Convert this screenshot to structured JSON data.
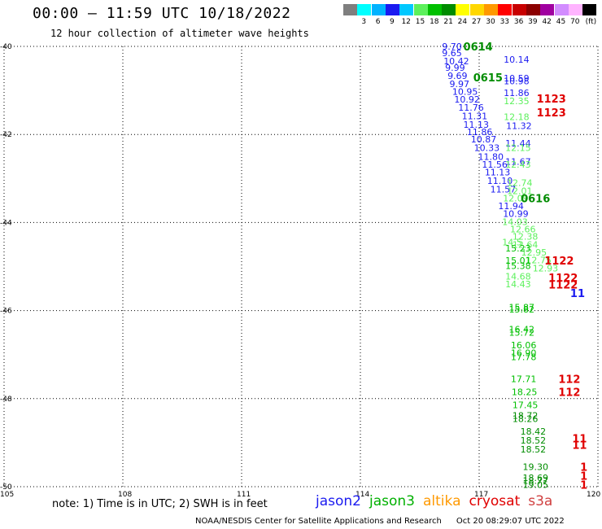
{
  "header": {
    "title": "00:00 – 11:59 UTC 10/18/2022",
    "subtitle": "12 hour collection of altimeter wave heights"
  },
  "legend": {
    "unit": "(ft)",
    "items": [
      {
        "label": "",
        "color": "#7f7f7f"
      },
      {
        "label": "3",
        "color": "#00ffff"
      },
      {
        "label": "6",
        "color": "#00b3ff"
      },
      {
        "label": "9",
        "color": "#1b1bf0"
      },
      {
        "label": "12",
        "color": "#00c8ff"
      },
      {
        "label": "15",
        "color": "#5cf05c"
      },
      {
        "label": "18",
        "color": "#00c000"
      },
      {
        "label": "21",
        "color": "#008c00"
      },
      {
        "label": "24",
        "color": "#ffff00"
      },
      {
        "label": "27",
        "color": "#ffd700"
      },
      {
        "label": "30",
        "color": "#ff9900"
      },
      {
        "label": "33",
        "color": "#ff0000"
      },
      {
        "label": "36",
        "color": "#c80000"
      },
      {
        "label": "39",
        "color": "#8b0000"
      },
      {
        "label": "42",
        "color": "#a000a0"
      },
      {
        "label": "45",
        "color": "#d28cff"
      },
      {
        "label": "70",
        "color": "#ffb4ff"
      },
      {
        "label": "",
        "color": "#000000"
      }
    ]
  },
  "map": {
    "lon_ticks": [
      "105",
      "108",
      "111",
      "114",
      "117",
      "120"
    ],
    "lat_ticks": [
      "-40",
      "-42",
      "-44",
      "-46",
      "-48",
      "-50"
    ]
  },
  "observations": [
    {
      "t": "9.70",
      "c": "#1b1bf0",
      "lon": 116.06,
      "lat": -40.0
    },
    {
      "t": "9.65",
      "c": "#1b1bf0",
      "lon": 116.06,
      "lat": -40.15
    },
    {
      "t": "10.42",
      "c": "#1b1bf0",
      "lon": 116.1,
      "lat": -40.33
    },
    {
      "t": "9.99",
      "c": "#1b1bf0",
      "lon": 116.14,
      "lat": -40.48
    },
    {
      "t": "9.69",
      "c": "#1b1bf0",
      "lon": 116.2,
      "lat": -40.67
    },
    {
      "t": "9.97",
      "c": "#1b1bf0",
      "lon": 116.25,
      "lat": -40.85
    },
    {
      "t": "10.95",
      "c": "#1b1bf0",
      "lon": 116.32,
      "lat": -41.03
    },
    {
      "t": "10.92",
      "c": "#1b1bf0",
      "lon": 116.37,
      "lat": -41.2
    },
    {
      "t": "11.76",
      "c": "#1b1bf0",
      "lon": 116.47,
      "lat": -41.39
    },
    {
      "t": "11.31",
      "c": "#1b1bf0",
      "lon": 116.56,
      "lat": -41.58
    },
    {
      "t": "11.13",
      "c": "#1b1bf0",
      "lon": 116.6,
      "lat": -41.77
    },
    {
      "t": "11.86",
      "c": "#1b1bf0",
      "lon": 116.69,
      "lat": -41.94
    },
    {
      "t": "10.87",
      "c": "#1b1bf0",
      "lon": 116.79,
      "lat": -42.11
    },
    {
      "t": "10.33",
      "c": "#1b1bf0",
      "lon": 116.87,
      "lat": -42.3
    },
    {
      "t": "11.80",
      "c": "#1b1bf0",
      "lon": 116.97,
      "lat": -42.5
    },
    {
      "t": "11.56",
      "c": "#1b1bf0",
      "lon": 117.07,
      "lat": -42.68
    },
    {
      "t": "11.13",
      "c": "#1b1bf0",
      "lon": 117.14,
      "lat": -42.86
    },
    {
      "t": "11.10",
      "c": "#1b1bf0",
      "lon": 117.2,
      "lat": -43.05
    },
    {
      "t": "11.57",
      "c": "#1b1bf0",
      "lon": 117.28,
      "lat": -43.24
    },
    {
      "t": "11.94",
      "c": "#1b1bf0",
      "lon": 117.48,
      "lat": -43.62
    },
    {
      "t": "10.99",
      "c": "#1b1bf0",
      "lon": 117.6,
      "lat": -43.8
    },
    {
      "t": "10.14",
      "c": "#1b1bf0",
      "lon": 117.62,
      "lat": -40.3
    },
    {
      "t": "10.59",
      "c": "#1b1bf0",
      "lon": 117.62,
      "lat": -40.72
    },
    {
      "t": "10.98",
      "c": "#1b1bf0",
      "lon": 117.62,
      "lat": -40.79
    },
    {
      "t": "11.86",
      "c": "#1b1bf0",
      "lon": 117.62,
      "lat": -41.05
    },
    {
      "t": "11.32",
      "c": "#1b1bf0",
      "lon": 117.68,
      "lat": -41.8
    },
    {
      "t": "11.44",
      "c": "#1b1bf0",
      "lon": 117.66,
      "lat": -42.2
    },
    {
      "t": "11.67",
      "c": "#1b1bf0",
      "lon": 117.66,
      "lat": -42.62
    },
    {
      "t": "12.35",
      "c": "#5cf05c",
      "lon": 117.62,
      "lat": -41.24
    },
    {
      "t": "12.18",
      "c": "#5cf05c",
      "lon": 117.62,
      "lat": -41.6
    },
    {
      "t": "12.15",
      "c": "#5cf05c",
      "lon": 117.66,
      "lat": -42.3
    },
    {
      "t": "12.43",
      "c": "#5cf05c",
      "lon": 117.66,
      "lat": -42.68
    },
    {
      "t": "12.74",
      "c": "#5cf05c",
      "lon": 117.7,
      "lat": -43.1
    },
    {
      "t": "12.01",
      "c": "#5cf05c",
      "lon": 117.7,
      "lat": -43.28
    },
    {
      "t": "12.09",
      "c": "#5cf05c",
      "lon": 117.6,
      "lat": -43.45
    },
    {
      "t": "14.03",
      "c": "#5cf05c",
      "lon": 117.58,
      "lat": -43.98
    },
    {
      "t": "12.66",
      "c": "#5cf05c",
      "lon": 117.78,
      "lat": -44.15
    },
    {
      "t": "12.38",
      "c": "#5cf05c",
      "lon": 117.84,
      "lat": -44.32
    },
    {
      "t": "12.64",
      "c": "#5cf05c",
      "lon": 117.84,
      "lat": -44.5
    },
    {
      "t": "14.5",
      "c": "#5cf05c",
      "lon": 117.58,
      "lat": -44.45
    },
    {
      "t": "12.95",
      "c": "#5cf05c",
      "lon": 118.06,
      "lat": -44.68
    },
    {
      "t": "12.75",
      "c": "#5cf05c",
      "lon": 118.18,
      "lat": -44.85
    },
    {
      "t": "12.93",
      "c": "#5cf05c",
      "lon": 118.35,
      "lat": -45.04
    },
    {
      "t": "14.68",
      "c": "#5cf05c",
      "lon": 117.66,
      "lat": -45.22
    },
    {
      "t": "14.43",
      "c": "#5cf05c",
      "lon": 117.66,
      "lat": -45.4
    },
    {
      "t": "15.23",
      "c": "#00c000",
      "lon": 117.66,
      "lat": -44.58
    },
    {
      "t": "15.01",
      "c": "#00c000",
      "lon": 117.66,
      "lat": -44.86
    },
    {
      "t": "15.38",
      "c": "#00c000",
      "lon": 117.66,
      "lat": -44.98
    },
    {
      "t": "15.87",
      "c": "#00c000",
      "lon": 117.75,
      "lat": -45.92
    },
    {
      "t": "15.82",
      "c": "#00c000",
      "lon": 117.75,
      "lat": -45.97
    },
    {
      "t": "16.42",
      "c": "#00c000",
      "lon": 117.75,
      "lat": -46.42
    },
    {
      "t": "15.72",
      "c": "#00c000",
      "lon": 117.75,
      "lat": -46.5
    },
    {
      "t": "16.06",
      "c": "#00c000",
      "lon": 117.8,
      "lat": -46.78
    },
    {
      "t": "16.90",
      "c": "#00c000",
      "lon": 117.8,
      "lat": -46.96
    },
    {
      "t": "17.78",
      "c": "#00c000",
      "lon": 117.8,
      "lat": -47.05
    },
    {
      "t": "17.71",
      "c": "#00c000",
      "lon": 117.8,
      "lat": -47.55
    },
    {
      "t": "18.25",
      "c": "#00c000",
      "lon": 117.82,
      "lat": -47.85
    },
    {
      "t": "17.45",
      "c": "#00c000",
      "lon": 117.84,
      "lat": -48.14
    },
    {
      "t": "18.72",
      "c": "#008c00",
      "lon": 117.84,
      "lat": -48.38
    },
    {
      "t": "18.26",
      "c": "#008c00",
      "lon": 117.84,
      "lat": -48.46
    },
    {
      "t": "18.42",
      "c": "#008c00",
      "lon": 118.04,
      "lat": -48.74
    },
    {
      "t": "18.52",
      "c": "#008c00",
      "lon": 118.04,
      "lat": -48.95
    },
    {
      "t": "18.52",
      "c": "#008c00",
      "lon": 118.04,
      "lat": -49.15
    },
    {
      "t": "19.30",
      "c": "#008c00",
      "lon": 118.1,
      "lat": -49.55
    },
    {
      "t": "18.69",
      "c": "#008c00",
      "lon": 118.1,
      "lat": -49.8
    },
    {
      "t": "18.77",
      "c": "#008c00",
      "lon": 118.1,
      "lat": -49.86
    },
    {
      "t": "19.05",
      "c": "#008c00",
      "lon": 118.1,
      "lat": -49.95
    }
  ],
  "time_labels": [
    {
      "t": "0614",
      "c": "#008c00",
      "lon": 116.6,
      "lat": -40.0
    },
    {
      "t": "0615",
      "c": "#008c00",
      "lon": 116.85,
      "lat": -40.7
    },
    {
      "t": "0616",
      "c": "#008c00",
      "lon": 118.05,
      "lat": -43.45
    },
    {
      "t": "1123",
      "c": "#e00000",
      "lon": 118.45,
      "lat": -41.18
    },
    {
      "t": "1123",
      "c": "#e00000",
      "lon": 118.45,
      "lat": -41.5
    },
    {
      "t": "1122",
      "c": "#e00000",
      "lon": 118.65,
      "lat": -44.86
    },
    {
      "t": "1122",
      "c": "#e00000",
      "lon": 118.75,
      "lat": -45.25
    },
    {
      "t": "1122",
      "c": "#e00000",
      "lon": 118.75,
      "lat": -45.41
    },
    {
      "t": "112",
      "c": "#e00000",
      "lon": 119.0,
      "lat": -47.55
    },
    {
      "t": "112",
      "c": "#e00000",
      "lon": 119.0,
      "lat": -47.85
    },
    {
      "t": "11",
      "c": "#e00000",
      "lon": 119.35,
      "lat": -48.9
    },
    {
      "t": "11",
      "c": "#e00000",
      "lon": 119.35,
      "lat": -49.05
    },
    {
      "t": "1",
      "c": "#e00000",
      "lon": 119.55,
      "lat": -49.55
    },
    {
      "t": "1",
      "c": "#e00000",
      "lon": 119.55,
      "lat": -49.75
    },
    {
      "t": "1",
      "c": "#e00000",
      "lon": 119.55,
      "lat": -49.95
    },
    {
      "t": "11",
      "c": "#1b1bf0",
      "lon": 119.3,
      "lat": -45.6
    }
  ],
  "note": "note:  1) Time is in UTC; 2) SWH is in feet",
  "satellites": [
    {
      "name": "jason2",
      "color": "#1b1bf0"
    },
    {
      "name": "jason3",
      "color": "#00b000"
    },
    {
      "name": "altika",
      "color": "#ff9900"
    },
    {
      "name": "cryosat",
      "color": "#e00000"
    },
    {
      "name": "s3a",
      "color": "#d04040"
    }
  ],
  "footer": {
    "org": "NOAA/NESDIS Center for Satellite Applications and Research",
    "timestamp": "Oct 20 08:29:07 UTC 2022"
  }
}
